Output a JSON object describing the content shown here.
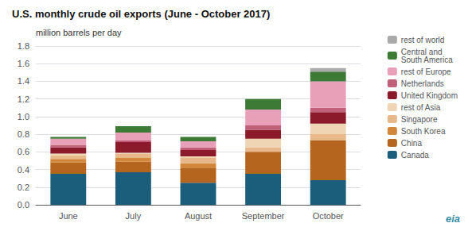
{
  "chart_data": {
    "type": "bar",
    "stacked": true,
    "title": "U.S. monthly crude oil exports (June - October 2017)",
    "ylabel": "million barrels per day",
    "annotations": [
      "eia"
    ],
    "categories": [
      "June",
      "July",
      "August",
      "September",
      "October"
    ],
    "series": [
      {
        "name": "Canada",
        "color": "#1b5e7b",
        "values": [
          0.35,
          0.37,
          0.25,
          0.35,
          0.28
        ]
      },
      {
        "name": "China",
        "color": "#b5651d",
        "values": [
          0.13,
          0.12,
          0.17,
          0.25,
          0.45
        ]
      },
      {
        "name": "South Korea",
        "color": "#d2873a",
        "values": [
          0.04,
          0.04,
          0.05,
          0.0,
          0.0
        ]
      },
      {
        "name": "Singapore",
        "color": "#e8b88a",
        "values": [
          0.04,
          0.05,
          0.06,
          0.05,
          0.07
        ]
      },
      {
        "name": "rest of Asia",
        "color": "#f0d5b5",
        "values": [
          0.02,
          0.01,
          0.02,
          0.1,
          0.12
        ]
      },
      {
        "name": "United Kingdom",
        "color": "#8b1a2b",
        "values": [
          0.07,
          0.12,
          0.07,
          0.1,
          0.13
        ]
      },
      {
        "name": "Netherlands",
        "color": "#c0607a",
        "values": [
          0.03,
          0.02,
          0.03,
          0.05,
          0.05
        ]
      },
      {
        "name": "rest of Europe",
        "color": "#e8a0b8",
        "values": [
          0.07,
          0.09,
          0.07,
          0.18,
          0.3
        ]
      },
      {
        "name": "Central and\nSouth America",
        "color": "#3d7a35",
        "values": [
          0.02,
          0.07,
          0.05,
          0.12,
          0.11
        ]
      },
      {
        "name": "rest of world",
        "color": "#aaaaaa",
        "values": [
          0.0,
          0.0,
          0.0,
          0.0,
          0.04
        ]
      }
    ],
    "ylim": [
      0,
      1.8
    ],
    "yticks": [
      {
        "value": 0,
        "label": "0.0"
      },
      0.2,
      0.4,
      0.6,
      0.8,
      {
        "value": 1,
        "label": "1.0"
      },
      1.2,
      1.4,
      1.6,
      1.8
    ],
    "grid": true,
    "legend": "right"
  }
}
